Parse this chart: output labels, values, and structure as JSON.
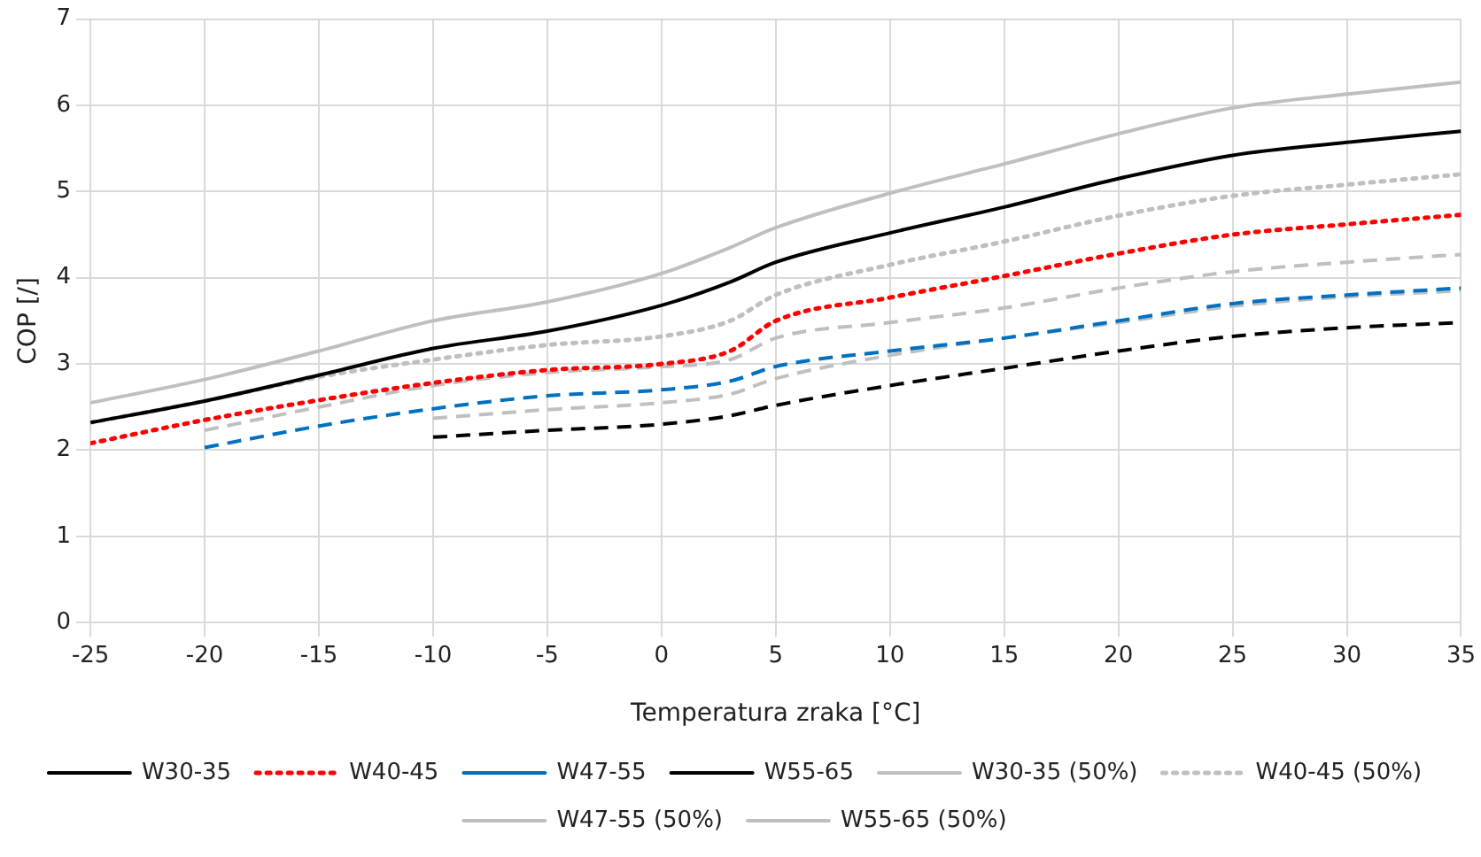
{
  "chart_data": {
    "type": "line",
    "xlabel": "Temperatura zraka [°C]",
    "ylabel": "COP [/]",
    "xlim": [
      -25,
      35
    ],
    "xticks": [
      -25,
      -20,
      -15,
      -10,
      -5,
      0,
      5,
      10,
      15,
      20,
      25,
      30,
      35
    ],
    "ylim": [
      0,
      7
    ],
    "yticks": [
      0,
      1,
      2,
      3,
      4,
      5,
      6,
      7
    ],
    "grid": true,
    "legend": "bottom",
    "marker": "none",
    "series": [
      {
        "name": "W30-35",
        "color": "#000000",
        "line_style": "solid",
        "x": [
          -25,
          -20,
          -15,
          -10,
          -5,
          0,
          3,
          5,
          10,
          15,
          20,
          25,
          30,
          35
        ],
        "values": [
          2.32,
          2.57,
          2.87,
          3.18,
          3.38,
          3.68,
          3.95,
          4.18,
          4.52,
          4.82,
          5.15,
          5.42,
          5.57,
          5.7
        ]
      },
      {
        "name": "W40-45",
        "color": "#ff0000",
        "line_style": "dotted",
        "x": [
          -25,
          -20,
          -15,
          -10,
          -5,
          0,
          3,
          5,
          10,
          15,
          20,
          25,
          30,
          35
        ],
        "values": [
          2.08,
          2.35,
          2.58,
          2.78,
          2.93,
          3.0,
          3.15,
          3.5,
          3.77,
          4.02,
          4.28,
          4.5,
          4.62,
          4.73
        ]
      },
      {
        "name": "W47-55",
        "color": "#0070c0",
        "line_style": "dashed",
        "x": [
          -20,
          -15,
          -10,
          -5,
          0,
          3,
          5,
          10,
          15,
          20,
          25,
          30,
          35
        ],
        "values": [
          2.03,
          2.28,
          2.48,
          2.63,
          2.7,
          2.8,
          2.97,
          3.15,
          3.3,
          3.5,
          3.7,
          3.8,
          3.88
        ]
      },
      {
        "name": "W55-65",
        "color": "#000000",
        "line_style": "dashed",
        "x": [
          -10,
          -5,
          0,
          3,
          5,
          10,
          15,
          20,
          25,
          30,
          35
        ],
        "values": [
          2.15,
          2.23,
          2.3,
          2.4,
          2.52,
          2.75,
          2.95,
          3.15,
          3.32,
          3.42,
          3.48
        ]
      },
      {
        "name": "W30-35 (50%)",
        "color": "#bfbfbf",
        "line_style": "solid",
        "x": [
          -25,
          -20,
          -15,
          -10,
          -5,
          0,
          3,
          5,
          10,
          15,
          20,
          25,
          30,
          35
        ],
        "values": [
          2.55,
          2.82,
          3.15,
          3.5,
          3.72,
          4.05,
          4.35,
          4.58,
          4.98,
          5.32,
          5.67,
          5.97,
          6.13,
          6.27
        ]
      },
      {
        "name": "W40-45 (50%)",
        "color": "#bfbfbf",
        "line_style": "dotted",
        "x": [
          -25,
          -20,
          -15,
          -10,
          -5,
          0,
          3,
          5,
          10,
          15,
          20,
          25,
          30,
          35
        ],
        "values": [
          2.32,
          2.57,
          2.85,
          3.05,
          3.22,
          3.32,
          3.5,
          3.8,
          4.15,
          4.42,
          4.72,
          4.95,
          5.08,
          5.2
        ]
      },
      {
        "name": "W47-55 (50%)",
        "color": "#bfbfbf",
        "line_style": "dashed",
        "x": [
          -20,
          -15,
          -10,
          -5,
          0,
          3,
          5,
          10,
          15,
          20,
          25,
          30,
          35
        ],
        "values": [
          2.23,
          2.5,
          2.75,
          2.9,
          2.97,
          3.05,
          3.3,
          3.48,
          3.65,
          3.88,
          4.07,
          4.18,
          4.27
        ]
      },
      {
        "name": "W55-65 (50%)",
        "color": "#bfbfbf",
        "line_style": "dashed",
        "x": [
          -10,
          -5,
          0,
          3,
          5,
          10,
          15,
          20,
          25,
          30,
          35
        ],
        "values": [
          2.37,
          2.47,
          2.55,
          2.65,
          2.83,
          3.1,
          3.3,
          3.48,
          3.67,
          3.78,
          3.85
        ]
      }
    ]
  }
}
